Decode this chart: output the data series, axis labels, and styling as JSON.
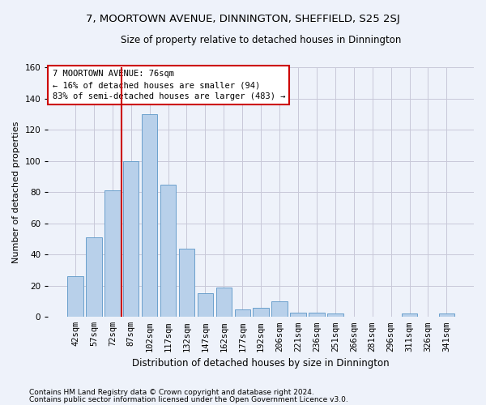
{
  "title1": "7, MOORTOWN AVENUE, DINNINGTON, SHEFFIELD, S25 2SJ",
  "title2": "Size of property relative to detached houses in Dinnington",
  "xlabel": "Distribution of detached houses by size in Dinnington",
  "ylabel": "Number of detached properties",
  "bar_labels": [
    "42sqm",
    "57sqm",
    "72sqm",
    "87sqm",
    "102sqm",
    "117sqm",
    "132sqm",
    "147sqm",
    "162sqm",
    "177sqm",
    "192sqm",
    "206sqm",
    "221sqm",
    "236sqm",
    "251sqm",
    "266sqm",
    "281sqm",
    "296sqm",
    "311sqm",
    "326sqm",
    "341sqm"
  ],
  "bar_values": [
    26,
    51,
    81,
    100,
    130,
    85,
    44,
    15,
    19,
    5,
    6,
    10,
    3,
    3,
    2,
    0,
    0,
    0,
    2,
    0,
    2
  ],
  "bar_color": "#b8d0ea",
  "bar_edge_color": "#6aa0cc",
  "vline_pos": 2.5,
  "annotation_title": "7 MOORTOWN AVENUE: 76sqm",
  "annotation_line1": "← 16% of detached houses are smaller (94)",
  "annotation_line2": "83% of semi-detached houses are larger (483) →",
  "annotation_box_color": "#ffffff",
  "annotation_box_edge": "#cc0000",
  "vline_color": "#cc0000",
  "grid_color": "#c8c8d8",
  "footnote1": "Contains HM Land Registry data © Crown copyright and database right 2024.",
  "footnote2": "Contains public sector information licensed under the Open Government Licence v3.0.",
  "ylim": [
    0,
    160
  ],
  "yticks": [
    0,
    20,
    40,
    60,
    80,
    100,
    120,
    140,
    160
  ],
  "background_color": "#eef2fa",
  "title_fontsize": 9.5,
  "subtitle_fontsize": 8.5,
  "xlabel_fontsize": 8.5,
  "ylabel_fontsize": 8,
  "tick_fontsize": 7.5,
  "annot_fontsize": 7.5,
  "footnote_fontsize": 6.5
}
